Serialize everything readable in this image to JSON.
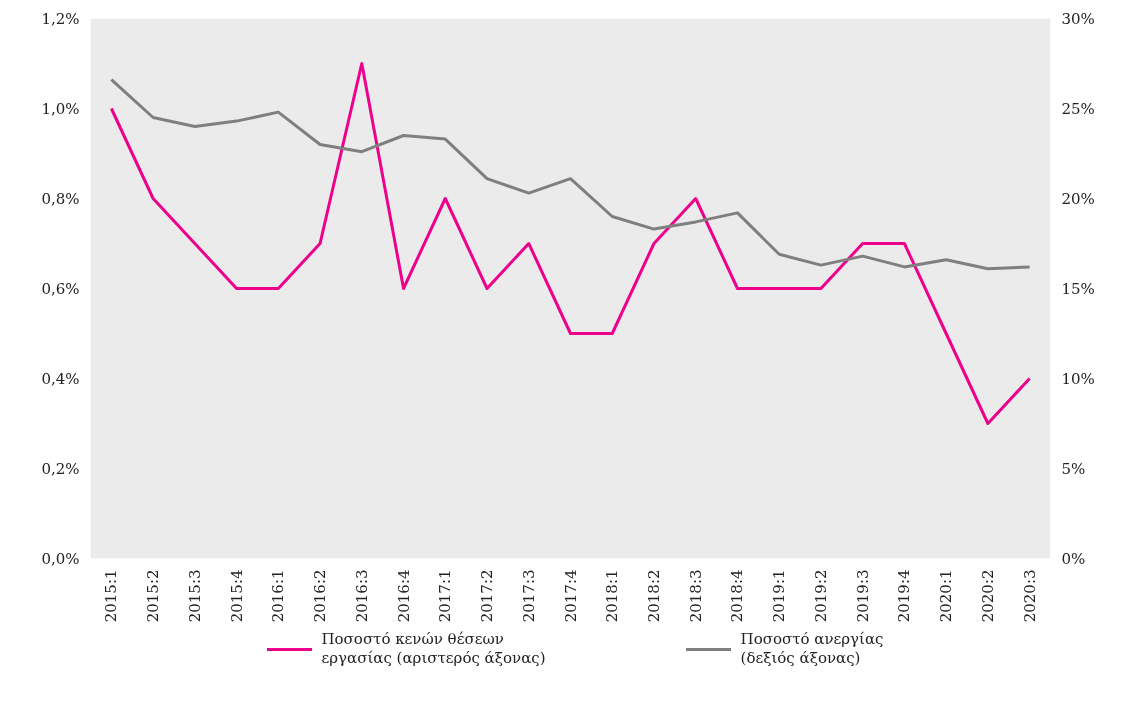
{
  "chart_data": {
    "type": "line",
    "categories": [
      "2015:1",
      "2015:2",
      "2015:3",
      "2015:4",
      "2016:1",
      "2016:2",
      "2016:3",
      "2016:4",
      "2017:1",
      "2017:2",
      "2017:3",
      "2017:4",
      "2018:1",
      "2018:2",
      "2018:3",
      "2018:4",
      "2019:1",
      "2019:2",
      "2019:3",
      "2019:4",
      "2020:1",
      "2020:2",
      "2020:3"
    ],
    "series": [
      {
        "name": "Ποσοστό κενών θέσεων εργασίας (αριστερός άξονας)",
        "color": "#ec008c",
        "values": [
          1.0,
          0.8,
          0.7,
          0.6,
          0.6,
          0.7,
          1.1,
          0.6,
          0.8,
          0.6,
          0.7,
          0.5,
          0.5,
          0.7,
          0.8,
          0.6,
          0.6,
          0.6,
          0.7,
          0.7,
          0.5,
          0.3,
          0.4
        ]
      },
      {
        "name": "Ποσοστό ανεργίας (δεξιός άξονας)",
        "color": "#7f7f7f",
        "axis": "y2",
        "values": [
          26.6,
          24.5,
          24.0,
          24.3,
          24.8,
          23.0,
          22.6,
          23.5,
          23.3,
          21.1,
          20.3,
          21.1,
          19.0,
          18.3,
          18.7,
          19.2,
          16.9,
          16.3,
          16.8,
          16.2,
          16.6,
          16.1,
          16.2
        ]
      }
    ],
    "ylim": [
      0,
      1.2
    ],
    "yticks": [
      {
        "value": 0,
        "label": "0,0%"
      },
      {
        "value": 0.2,
        "label": "0,2%"
      },
      {
        "value": 0.4,
        "label": "0,4%"
      },
      {
        "value": 0.6,
        "label": "0,6%"
      },
      {
        "value": 0.8,
        "label": "0,8%"
      },
      {
        "value": 1.0,
        "label": "1,0%"
      },
      {
        "value": 1.2,
        "label": "1,2%"
      }
    ],
    "y2lim": [
      0,
      30
    ],
    "y2ticks": [
      {
        "value": 0,
        "label": "0%"
      },
      {
        "value": 5,
        "label": "5%"
      },
      {
        "value": 10,
        "label": "10%"
      },
      {
        "value": 15,
        "label": "15%"
      },
      {
        "value": 20,
        "label": "20%"
      },
      {
        "value": 25,
        "label": "25%"
      },
      {
        "value": 30,
        "label": "30%"
      }
    ],
    "legend": "bottom",
    "marker": "none",
    "line_style": "solid"
  }
}
